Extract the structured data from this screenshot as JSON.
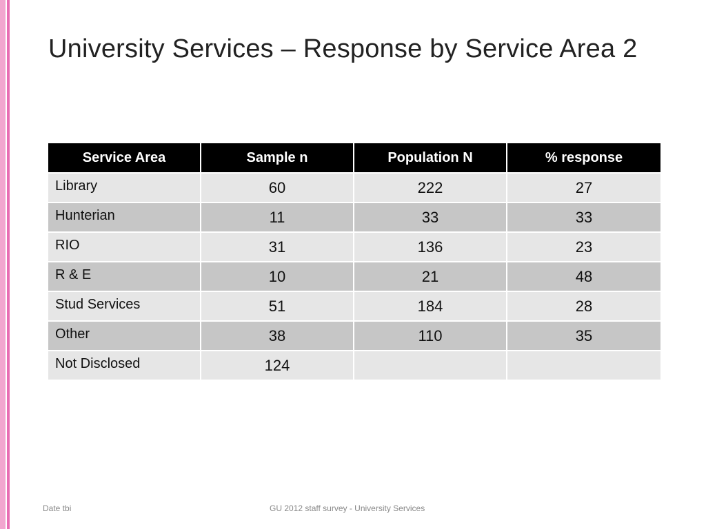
{
  "slide": {
    "title": "University Services – Response by Service Area 2",
    "accent_colors": [
      "#f2a6cf",
      "#e86db3"
    ]
  },
  "table": {
    "headers": [
      "Service Area",
      "Sample n",
      "Population N",
      "% response"
    ],
    "rows": [
      {
        "area": "Library",
        "sample": "60",
        "population": "222",
        "response": "27"
      },
      {
        "area": "Hunterian",
        "sample": "11",
        "population": "33",
        "response": "33"
      },
      {
        "area": "RIO",
        "sample": "31",
        "population": "136",
        "response": "23"
      },
      {
        "area": "R & E",
        "sample": "10",
        "population": "21",
        "response": "48"
      },
      {
        "area": "Stud Services",
        "sample": "51",
        "population": "184",
        "response": "28"
      },
      {
        "area": "Other",
        "sample": "38",
        "population": "110",
        "response": "35"
      },
      {
        "area": "Not Disclosed",
        "sample": "124",
        "population": "",
        "response": ""
      }
    ]
  },
  "footer": {
    "left": "Date tbi",
    "center": "GU 2012 staff survey -  University Services"
  }
}
